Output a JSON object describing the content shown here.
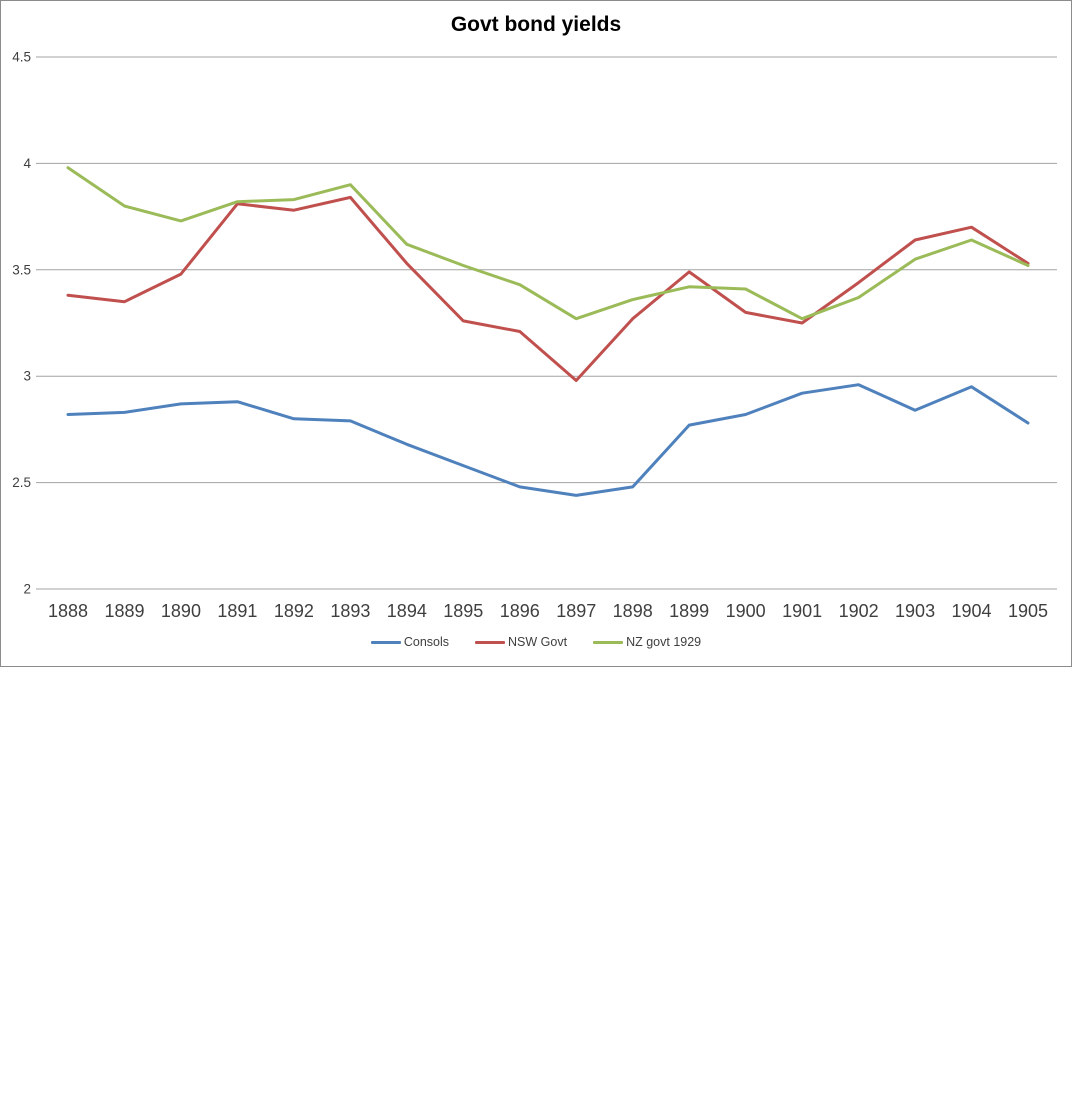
{
  "chart_data": {
    "type": "line",
    "title": "Govt bond yields",
    "categories": [
      "1888",
      "1889",
      "1890",
      "1891",
      "1892",
      "1893",
      "1894",
      "1895",
      "1896",
      "1897",
      "1898",
      "1899",
      "1900",
      "1901",
      "1902",
      "1903",
      "1904",
      "1905"
    ],
    "series": [
      {
        "name": "Consols",
        "color": "#4F81BD",
        "values": [
          2.82,
          2.83,
          2.87,
          2.88,
          2.8,
          2.79,
          2.68,
          2.58,
          2.48,
          2.44,
          2.48,
          2.77,
          2.82,
          2.92,
          2.96,
          2.84,
          2.95,
          2.78
        ]
      },
      {
        "name": "NSW Govt",
        "color": "#C0504D",
        "values": [
          3.38,
          3.35,
          3.48,
          3.81,
          3.78,
          3.84,
          3.53,
          3.26,
          3.21,
          2.98,
          3.27,
          3.49,
          3.3,
          3.25,
          3.44,
          3.64,
          3.7,
          3.53
        ]
      },
      {
        "name": "NZ govt 1929",
        "color": "#9BBB59",
        "values": [
          3.98,
          3.8,
          3.73,
          3.82,
          3.83,
          3.9,
          3.62,
          3.52,
          3.43,
          3.27,
          3.36,
          3.42,
          3.41,
          3.27,
          3.37,
          3.55,
          3.64,
          3.52
        ]
      }
    ],
    "ylim": [
      2,
      4.5
    ],
    "yticks": [
      2,
      2.5,
      3,
      3.5,
      4,
      4.5
    ],
    "ytick_labels": [
      "2",
      "2.5",
      "3",
      "3.5",
      "4",
      "4.5"
    ],
    "grid": true,
    "legend_position": "bottom",
    "colors": {
      "gridline": "#A3A3A3",
      "axis_text": "#3f3f3f",
      "chart_border": "#8c8c8c"
    }
  }
}
